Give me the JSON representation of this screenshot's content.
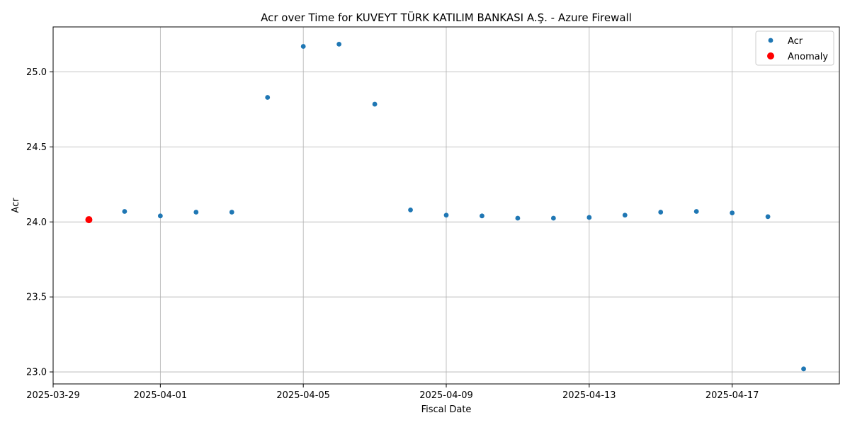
{
  "chart_data": {
    "type": "scatter",
    "title": "Acr over Time for KUVEYT TÜRK KATILIM BANKASI A.Ş. - Azure Firewall",
    "xlabel": "Fiscal Date",
    "ylabel": "Acr",
    "xlim": [
      "2025-03-29",
      "2025-04-20"
    ],
    "ylim": [
      22.92,
      25.3
    ],
    "x_ticks": [
      "2025-03-29",
      "2025-04-01",
      "2025-04-05",
      "2025-04-09",
      "2025-04-13",
      "2025-04-17"
    ],
    "y_ticks": [
      "23.0",
      "23.5",
      "24.0",
      "24.5",
      "25.0"
    ],
    "grid": true,
    "legend_position": "top-right",
    "series": [
      {
        "name": "Acr",
        "color": "#1f77b4",
        "points": [
          {
            "x": "2025-03-30",
            "y": 24.015
          },
          {
            "x": "2025-03-31",
            "y": 24.07
          },
          {
            "x": "2025-04-01",
            "y": 24.04
          },
          {
            "x": "2025-04-02",
            "y": 24.065
          },
          {
            "x": "2025-04-03",
            "y": 24.065
          },
          {
            "x": "2025-04-04",
            "y": 24.83
          },
          {
            "x": "2025-04-05",
            "y": 25.17
          },
          {
            "x": "2025-04-06",
            "y": 25.185
          },
          {
            "x": "2025-04-07",
            "y": 24.785
          },
          {
            "x": "2025-04-08",
            "y": 24.08
          },
          {
            "x": "2025-04-09",
            "y": 24.045
          },
          {
            "x": "2025-04-10",
            "y": 24.04
          },
          {
            "x": "2025-04-11",
            "y": 24.025
          },
          {
            "x": "2025-04-12",
            "y": 24.025
          },
          {
            "x": "2025-04-13",
            "y": 24.03
          },
          {
            "x": "2025-04-14",
            "y": 24.045
          },
          {
            "x": "2025-04-15",
            "y": 24.065
          },
          {
            "x": "2025-04-16",
            "y": 24.07
          },
          {
            "x": "2025-04-17",
            "y": 24.06
          },
          {
            "x": "2025-04-18",
            "y": 24.035
          },
          {
            "x": "2025-04-19",
            "y": 23.02
          }
        ]
      },
      {
        "name": "Anomaly",
        "color": "#ff0000",
        "points": [
          {
            "x": "2025-03-30",
            "y": 24.015
          }
        ]
      }
    ]
  }
}
